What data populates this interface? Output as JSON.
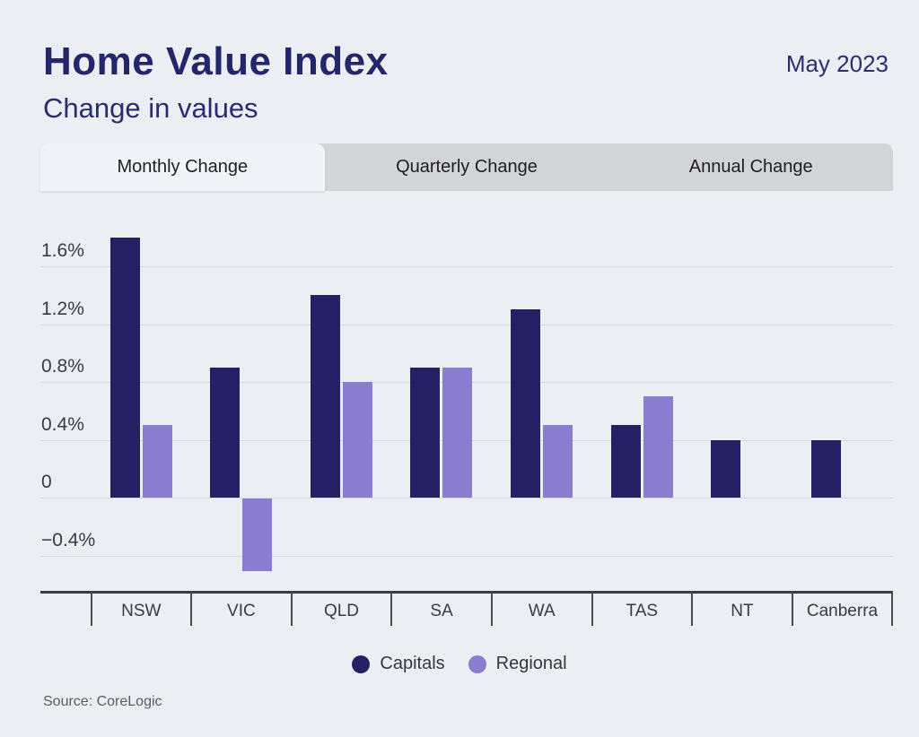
{
  "header": {
    "title": "Home Value Index",
    "subtitle": "Change in values",
    "date": "May 2023"
  },
  "tabs": [
    {
      "label": "Monthly Change",
      "active": true
    },
    {
      "label": "Quarterly Change",
      "active": false
    },
    {
      "label": "Annual Change",
      "active": false
    }
  ],
  "chart_data": {
    "type": "bar",
    "title": "Home Value Index — Change in values (Monthly Change)",
    "categories": [
      "NSW",
      "VIC",
      "QLD",
      "SA",
      "WA",
      "TAS",
      "NT",
      "Canberra"
    ],
    "series": [
      {
        "name": "Capitals",
        "color": "#232066",
        "values": [
          1.8,
          0.9,
          1.4,
          0.9,
          1.3,
          0.5,
          0.4,
          0.4
        ]
      },
      {
        "name": "Regional",
        "color": "#8a7cce",
        "values": [
          0.5,
          -0.5,
          0.8,
          0.9,
          0.5,
          0.7,
          null,
          null
        ]
      }
    ],
    "unit": "%",
    "yticks": [
      {
        "value": 1.6,
        "label": "1.6%"
      },
      {
        "value": 1.2,
        "label": "1.2%"
      },
      {
        "value": 0.8,
        "label": "0.8%"
      },
      {
        "value": 0.4,
        "label": "0.4%"
      },
      {
        "value": 0,
        "label": "0"
      },
      {
        "value": -0.4,
        "label": "−0.4%"
      }
    ],
    "ylim": [
      -0.65,
      1.95
    ],
    "grid": true,
    "legend_position": "bottom"
  },
  "source": "Source: CoreLogic",
  "colors": {
    "background": "#ebeef3",
    "heading": "#23266b",
    "capitals": "#232066",
    "regional": "#8a7cce",
    "tabbar": "#d3d4d6",
    "active_tab": "#f0f3f7",
    "gridline": "#d7d9de",
    "axis": "#3b3b42"
  }
}
